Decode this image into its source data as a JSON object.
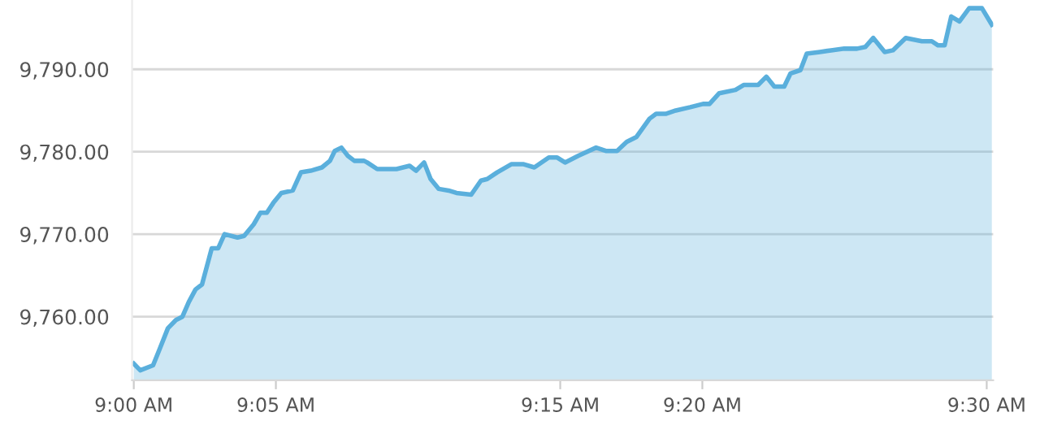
{
  "chart_data": {
    "type": "area",
    "color": "#5aafdc",
    "grid": "y",
    "marker": "none",
    "line_style": "solid",
    "x": [
      9.0,
      9.0038,
      9.0113,
      9.0152,
      9.02,
      9.0247,
      9.0285,
      9.0323,
      9.0362,
      9.04,
      9.0457,
      9.0495,
      9.0532,
      9.0608,
      9.0647,
      9.0703,
      9.0742,
      9.078,
      9.0818,
      9.0865,
      9.0932,
      9.098,
      9.1037,
      9.1103,
      9.115,
      9.1178,
      9.1217,
      9.1255,
      9.1293,
      9.135,
      9.1368,
      9.1427,
      9.154,
      9.1617,
      9.1655,
      9.1702,
      9.174,
      9.1787,
      9.1845,
      9.1892,
      9.1978,
      9.2035,
      9.2072,
      9.213,
      9.2215,
      9.2282,
      9.2348,
      9.2433,
      9.2482,
      9.2528,
      9.2605,
      9.271,
      9.2767,
      9.2833,
      9.289,
      9.2947,
      9.3023,
      9.3062,
      9.3118,
      9.3177,
      9.3262,
      9.3337,
      9.3375,
      9.3432,
      9.3527,
      9.3575,
      9.366,
      9.3708,
      9.3755,
      9.3813,
      9.385,
      9.3908,
      9.3945,
      9.4022,
      9.4088,
      9.4165,
      9.424,
      9.4288,
      9.4335,
      9.4402,
      9.445,
      9.4525,
      9.462,
      9.4678,
      9.4715,
      9.4753,
      9.4792,
      9.484,
      9.4897,
      9.4972,
      9.503
    ],
    "values": [
      9754.3,
      9753.5,
      9754.1,
      9756.1,
      9758.6,
      9759.6,
      9760.0,
      9761.8,
      9763.3,
      9763.9,
      9768.3,
      9768.3,
      9770.0,
      9769.6,
      9769.8,
      9771.2,
      9772.6,
      9772.6,
      9773.8,
      9775.0,
      9775.3,
      9777.5,
      9777.7,
      9778.1,
      9778.9,
      9780.1,
      9780.5,
      9779.5,
      9778.9,
      9778.9,
      9778.7,
      9777.9,
      9777.9,
      9778.3,
      9777.7,
      9778.7,
      9776.7,
      9775.5,
      9775.3,
      9775.0,
      9774.8,
      9776.5,
      9776.7,
      9777.5,
      9778.5,
      9778.5,
      9778.1,
      9779.3,
      9779.3,
      9778.7,
      9779.5,
      9780.5,
      9780.1,
      9780.1,
      9781.2,
      9781.8,
      9784.0,
      9784.6,
      9784.6,
      9785.0,
      9785.4,
      9785.8,
      9785.8,
      9787.1,
      9787.5,
      9788.1,
      9788.1,
      9789.1,
      9787.9,
      9787.9,
      9789.5,
      9789.9,
      9791.9,
      9792.1,
      9792.3,
      9792.5,
      9792.5,
      9792.7,
      9793.8,
      9792.1,
      9792.3,
      9793.8,
      9793.4,
      9793.4,
      9792.9,
      9792.9,
      9796.4,
      9795.8,
      9797.4,
      9797.4,
      9795.4
    ],
    "xlim": [
      8.999,
      9.5038
    ],
    "ylim": [
      9752.3,
      9798.4
    ],
    "xticks": [
      {
        "value": 9.0,
        "label": "9:00 AM"
      },
      {
        "value": 9.0833,
        "label": "9:05 AM"
      },
      {
        "value": 9.25,
        "label": "9:15 AM"
      },
      {
        "value": 9.3333,
        "label": "9:20 AM"
      },
      {
        "value": 9.5,
        "label": "9:30 AM"
      }
    ],
    "yticks": [
      {
        "value": 9760,
        "label": "9,760.00"
      },
      {
        "value": 9770,
        "label": "9,770.00"
      },
      {
        "value": 9780,
        "label": "9,780.00"
      },
      {
        "value": 9790,
        "label": "9,790.00"
      }
    ]
  }
}
